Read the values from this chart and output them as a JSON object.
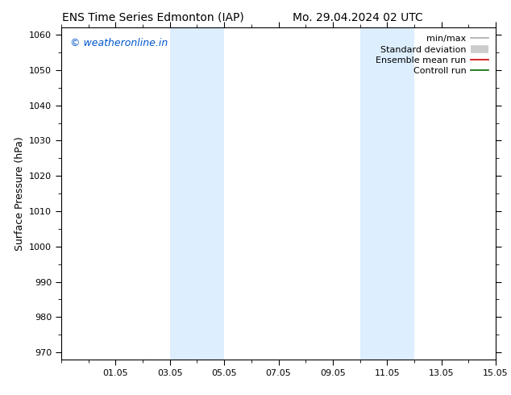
{
  "title_left": "ENS Time Series Edmonton (IAP)",
  "title_right": "Mo. 29.04.2024 02 UTC",
  "ylabel": "Surface Pressure (hPa)",
  "ylim": [
    968,
    1062
  ],
  "yticks": [
    970,
    980,
    990,
    1000,
    1010,
    1020,
    1030,
    1040,
    1050,
    1060
  ],
  "xlim": [
    0,
    16
  ],
  "xtick_labels": [
    "01.05",
    "03.05",
    "05.05",
    "07.05",
    "09.05",
    "11.05",
    "13.05",
    "15.05"
  ],
  "xtick_positions": [
    2,
    4,
    6,
    8,
    10,
    12,
    14,
    16
  ],
  "shade_bands": [
    {
      "xmin": 4.0,
      "xmax": 6.0
    },
    {
      "xmin": 11.0,
      "xmax": 13.0
    }
  ],
  "shade_color": "#ddeeff",
  "watermark_text": "© weatheronline.in",
  "watermark_color": "#0055cc",
  "legend_items": [
    {
      "label": "min/max",
      "color": "#aaaaaa",
      "lw": 1.2,
      "style": "line"
    },
    {
      "label": "Standard deviation",
      "color": "#cccccc",
      "lw": 7,
      "style": "band"
    },
    {
      "label": "Ensemble mean run",
      "color": "#cc0000",
      "lw": 1.2,
      "style": "line"
    },
    {
      "label": "Controll run",
      "color": "#006600",
      "lw": 1.2,
      "style": "line"
    }
  ],
  "bg_color": "#ffffff",
  "title_fontsize": 10,
  "tick_fontsize": 8,
  "ylabel_fontsize": 9,
  "watermark_fontsize": 9,
  "legend_fontsize": 8
}
